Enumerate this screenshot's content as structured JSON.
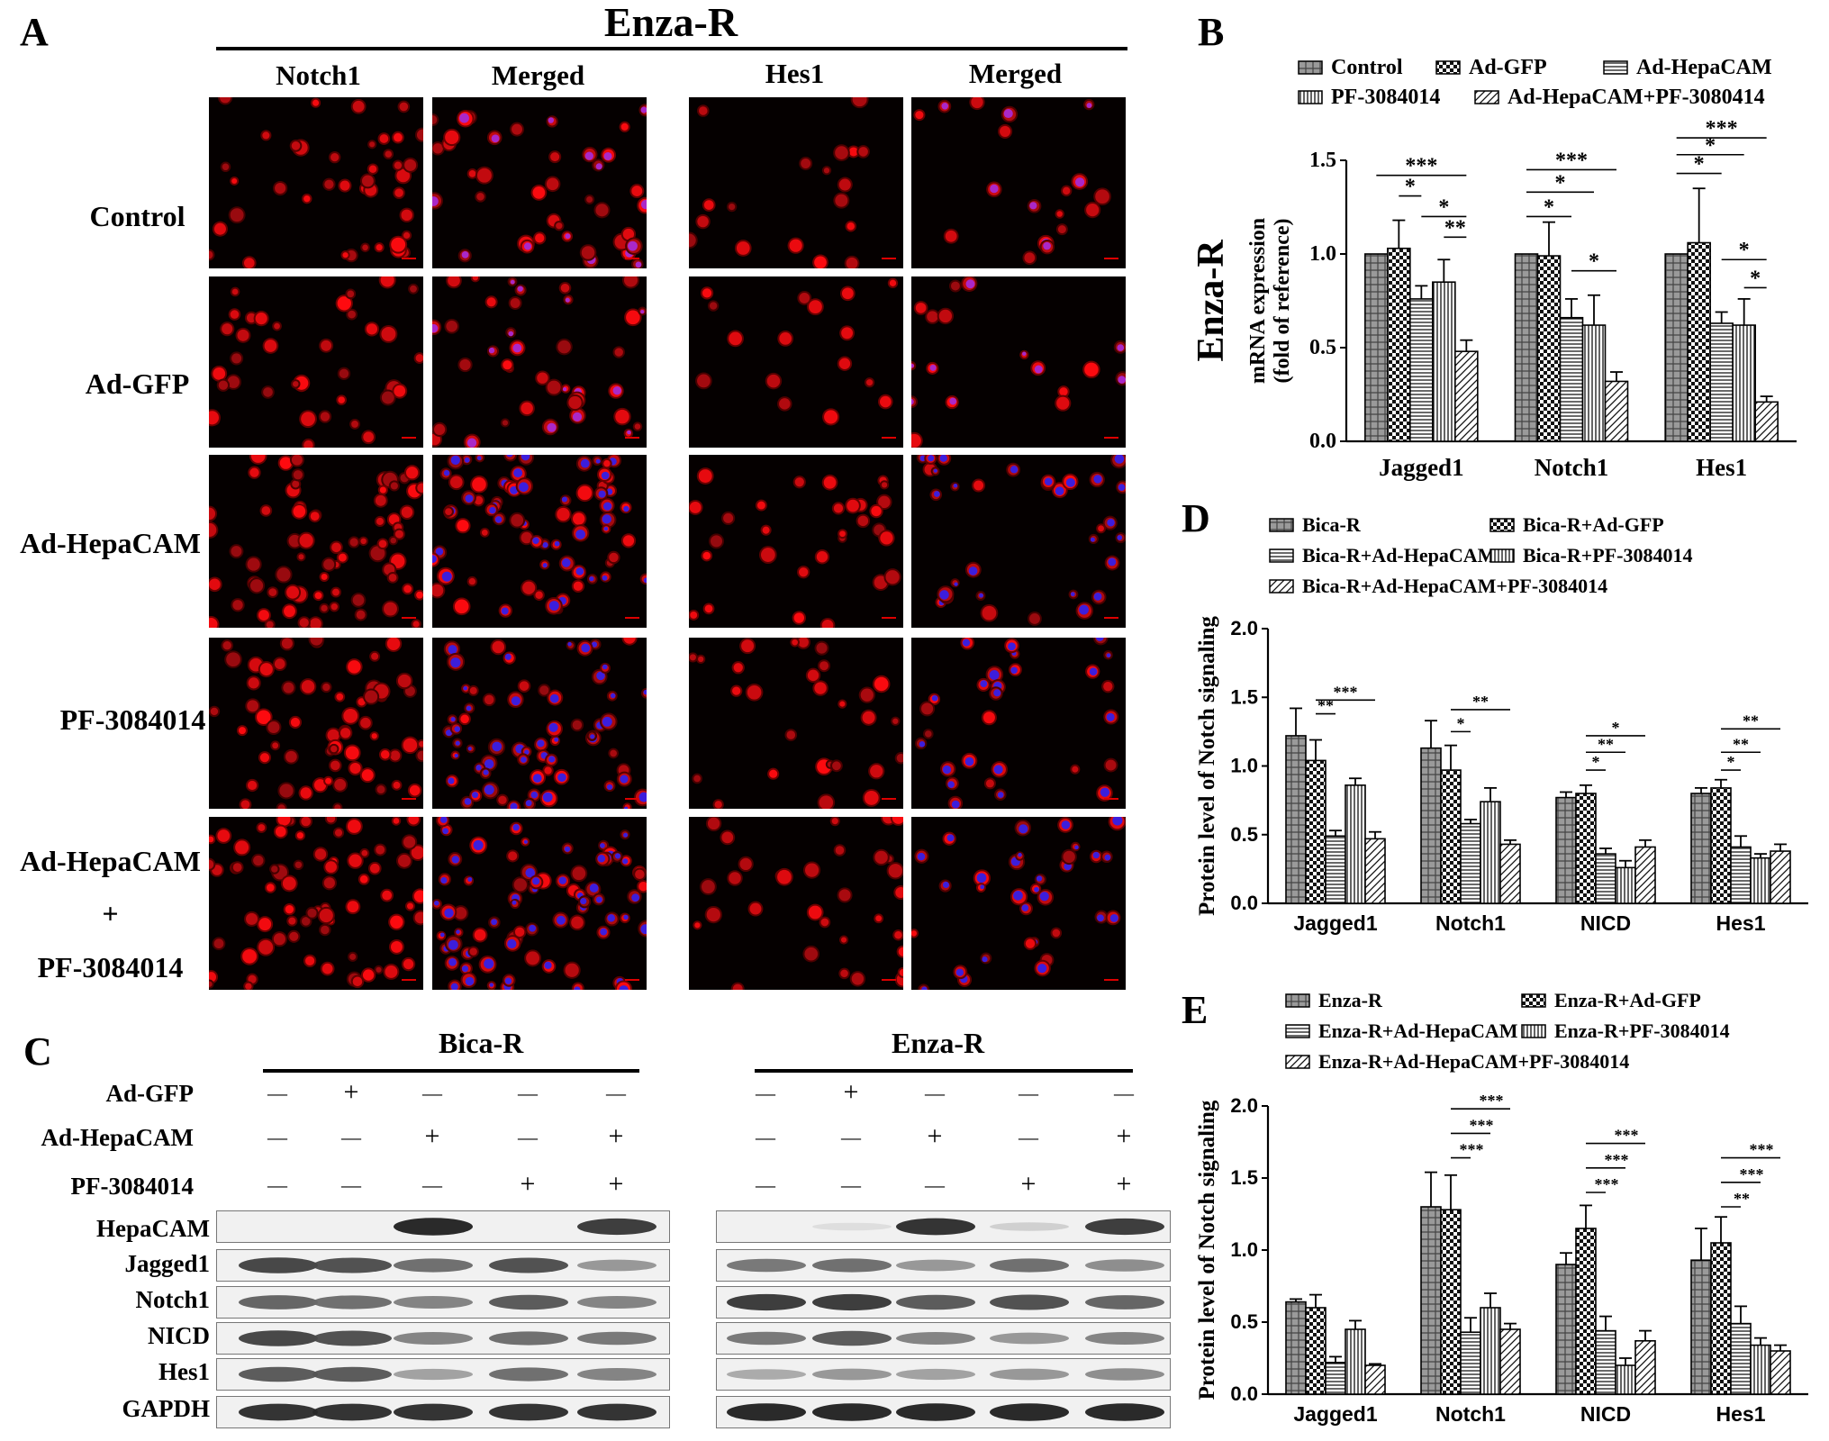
{
  "panel_a": {
    "label": "A",
    "title": "Enza-R",
    "col_headers": [
      "Notch1",
      "Merged",
      "Hes1",
      "Merged"
    ],
    "row_labels": [
      "Control",
      "Ad-GFP",
      "Ad-HepaCAM",
      "PF-3084014",
      "Ad-HepaCAM",
      "+",
      "PF-3084014"
    ]
  },
  "panel_b": {
    "label": "B"
  },
  "panel_c": {
    "label": "C",
    "group1": "Bica-R",
    "group2": "Enza-R",
    "treatments": [
      {
        "name": "Ad-GFP",
        "signs": [
          "—",
          "+",
          "—",
          "—",
          "—"
        ]
      },
      {
        "name": "Ad-HepaCAM",
        "signs": [
          "—",
          "—",
          "+",
          "—",
          "+"
        ]
      },
      {
        "name": "PF-3084014",
        "signs": [
          "—",
          "—",
          "—",
          "+",
          "+"
        ]
      }
    ],
    "proteins": [
      "HepaCAM",
      "Jagged1",
      "Notch1",
      "NICD",
      "Hes1",
      "GAPDH"
    ]
  },
  "panel_d": {
    "label": "D"
  },
  "panel_e": {
    "label": "E"
  },
  "chart_data": [
    {
      "id": "B",
      "type": "bar",
      "side_title": "Enza-R",
      "ylabel_line1": "mRNA expression",
      "ylabel_line2": "(fold of reference)",
      "ylim": [
        0,
        1.5
      ],
      "yticks": [
        "0.0",
        "0.5",
        "1.0",
        "1.5"
      ],
      "categories": [
        "Jagged1",
        "Notch1",
        "Hes1"
      ],
      "legend": [
        "Control",
        "Ad-GFP",
        "Ad-HepaCAM",
        "PF-3084014",
        "Ad-HepaCAM+PF-3080414"
      ],
      "series": [
        {
          "name": "Control",
          "values": [
            1.0,
            1.0,
            1.0
          ],
          "errors": [
            0,
            0,
            0
          ]
        },
        {
          "name": "Ad-GFP",
          "values": [
            1.03,
            0.99,
            1.06
          ],
          "errors": [
            0.15,
            0.18,
            0.29
          ]
        },
        {
          "name": "Ad-HepaCAM",
          "values": [
            0.76,
            0.66,
            0.63
          ],
          "errors": [
            0.07,
            0.1,
            0.06
          ]
        },
        {
          "name": "PF-3084014",
          "values": [
            0.85,
            0.62,
            0.62
          ],
          "errors": [
            0.12,
            0.16,
            0.14
          ]
        },
        {
          "name": "Ad-HepaCAM+PF-3080414",
          "values": [
            0.48,
            0.32,
            0.21
          ],
          "errors": [
            0.06,
            0.05,
            0.03
          ]
        }
      ],
      "significance": [
        {
          "cat": 0,
          "from": 1,
          "to": 2,
          "label": "*",
          "y": 1.31
        },
        {
          "cat": 0,
          "from": 2,
          "to": 4,
          "label": "*",
          "y": 1.2
        },
        {
          "cat": 0,
          "from": 3,
          "to": 4,
          "label": "**",
          "y": 1.09
        },
        {
          "cat": 0,
          "from": 0,
          "to": 4,
          "label": "***",
          "y": 1.42
        },
        {
          "cat": 1,
          "from": 0,
          "to": 2,
          "label": "*",
          "y": 1.2
        },
        {
          "cat": 1,
          "from": 0,
          "to": 3,
          "label": "*",
          "y": 1.33
        },
        {
          "cat": 1,
          "from": 0,
          "to": 4,
          "label": "***",
          "y": 1.45
        },
        {
          "cat": 1,
          "from": 2,
          "to": 4,
          "label": "*",
          "y": 0.91
        },
        {
          "cat": 2,
          "from": 0,
          "to": 2,
          "label": "*",
          "y": 1.43
        },
        {
          "cat": 2,
          "from": 0,
          "to": 3,
          "label": "*",
          "y": 1.53
        },
        {
          "cat": 2,
          "from": 0,
          "to": 4,
          "label": "***",
          "y": 1.62
        },
        {
          "cat": 2,
          "from": 2,
          "to": 4,
          "label": "*",
          "y": 0.97
        },
        {
          "cat": 2,
          "from": 3,
          "to": 4,
          "label": "*",
          "y": 0.82
        }
      ]
    },
    {
      "id": "D",
      "type": "bar",
      "ylabel": "Protein level of Notch signaling",
      "ylim": [
        0,
        2.0
      ],
      "yticks": [
        "0.0",
        "0.5",
        "1.0",
        "1.5",
        "2.0"
      ],
      "categories": [
        "Jagged1",
        "Notch1",
        "NICD",
        "Hes1"
      ],
      "legend": [
        "Bica-R",
        "Bica-R+Ad-GFP",
        "Bica-R+Ad-HepaCAM",
        "Bica-R+PF-3084014",
        "Bica-R+Ad-HepaCAM+PF-3084014"
      ],
      "series": [
        {
          "name": "Bica-R",
          "values": [
            1.22,
            1.13,
            0.77,
            0.8
          ],
          "errors": [
            0.2,
            0.2,
            0.04,
            0.04
          ]
        },
        {
          "name": "Bica-R+Ad-GFP",
          "values": [
            1.04,
            0.97,
            0.8,
            0.84
          ],
          "errors": [
            0.15,
            0.18,
            0.06,
            0.06
          ]
        },
        {
          "name": "Bica-R+Ad-HepaCAM",
          "values": [
            0.49,
            0.58,
            0.36,
            0.41
          ],
          "errors": [
            0.04,
            0.03,
            0.04,
            0.08
          ]
        },
        {
          "name": "Bica-R+PF-3084014",
          "values": [
            0.86,
            0.74,
            0.26,
            0.33
          ],
          "errors": [
            0.05,
            0.1,
            0.05,
            0.03
          ]
        },
        {
          "name": "Bica-R+Ad-HepaCAM+PF-3084014",
          "values": [
            0.47,
            0.43,
            0.41,
            0.38
          ],
          "errors": [
            0.05,
            0.03,
            0.05,
            0.05
          ]
        }
      ],
      "significance": [
        {
          "cat": 0,
          "from": 1,
          "to": 2,
          "label": "**",
          "y": 1.38
        },
        {
          "cat": 0,
          "from": 1,
          "to": 4,
          "label": "***",
          "y": 1.48
        },
        {
          "cat": 1,
          "from": 1,
          "to": 2,
          "label": "*",
          "y": 1.25
        },
        {
          "cat": 1,
          "from": 1,
          "to": 4,
          "label": "**",
          "y": 1.41
        },
        {
          "cat": 2,
          "from": 1,
          "to": 2,
          "label": "*",
          "y": 0.97
        },
        {
          "cat": 2,
          "from": 1,
          "to": 3,
          "label": "**",
          "y": 1.1
        },
        {
          "cat": 2,
          "from": 1,
          "to": 4,
          "label": "*",
          "y": 1.22
        },
        {
          "cat": 3,
          "from": 1,
          "to": 2,
          "label": "*",
          "y": 0.97
        },
        {
          "cat": 3,
          "from": 1,
          "to": 3,
          "label": "**",
          "y": 1.1
        },
        {
          "cat": 3,
          "from": 1,
          "to": 4,
          "label": "**",
          "y": 1.27
        }
      ]
    },
    {
      "id": "E",
      "type": "bar",
      "ylabel": "Protein level of Notch signaling",
      "ylim": [
        0,
        2.0
      ],
      "yticks": [
        "0.0",
        "0.5",
        "1.0",
        "1.5",
        "2.0"
      ],
      "categories": [
        "Jagged1",
        "Notch1",
        "NICD",
        "Hes1"
      ],
      "legend": [
        "Enza-R",
        "Enza-R+Ad-GFP",
        "Enza-R+Ad-HepaCAM",
        "Enza-R+PF-3084014",
        "Enza-R+Ad-HepaCAM+PF-3084014"
      ],
      "series": [
        {
          "name": "Enza-R",
          "values": [
            0.64,
            1.3,
            0.9,
            0.93
          ],
          "errors": [
            0.02,
            0.24,
            0.08,
            0.22
          ]
        },
        {
          "name": "Enza-R+Ad-GFP",
          "values": [
            0.6,
            1.28,
            1.15,
            1.05
          ],
          "errors": [
            0.09,
            0.24,
            0.16,
            0.18
          ]
        },
        {
          "name": "Enza-R+Ad-HepaCAM",
          "values": [
            0.22,
            0.43,
            0.44,
            0.49
          ],
          "errors": [
            0.04,
            0.1,
            0.1,
            0.12
          ]
        },
        {
          "name": "Enza-R+PF-3084014",
          "values": [
            0.45,
            0.6,
            0.2,
            0.34
          ],
          "errors": [
            0.06,
            0.1,
            0.05,
            0.05
          ]
        },
        {
          "name": "Enza-R+Ad-HepaCAM+PF-3084014",
          "values": [
            0.2,
            0.45,
            0.37,
            0.3
          ],
          "errors": [
            0.01,
            0.04,
            0.07,
            0.04
          ]
        }
      ],
      "significance": [
        {
          "cat": 1,
          "from": 1,
          "to": 2,
          "label": "***",
          "y": 1.64
        },
        {
          "cat": 1,
          "from": 1,
          "to": 3,
          "label": "***",
          "y": 1.81
        },
        {
          "cat": 1,
          "from": 1,
          "to": 4,
          "label": "***",
          "y": 1.98
        },
        {
          "cat": 2,
          "from": 1,
          "to": 2,
          "label": "***",
          "y": 1.4
        },
        {
          "cat": 2,
          "from": 1,
          "to": 3,
          "label": "***",
          "y": 1.57
        },
        {
          "cat": 2,
          "from": 1,
          "to": 4,
          "label": "***",
          "y": 1.74
        },
        {
          "cat": 3,
          "from": 1,
          "to": 2,
          "label": "**",
          "y": 1.3
        },
        {
          "cat": 3,
          "from": 1,
          "to": 3,
          "label": "***",
          "y": 1.47
        },
        {
          "cat": 3,
          "from": 1,
          "to": 4,
          "label": "***",
          "y": 1.64
        }
      ]
    }
  ]
}
